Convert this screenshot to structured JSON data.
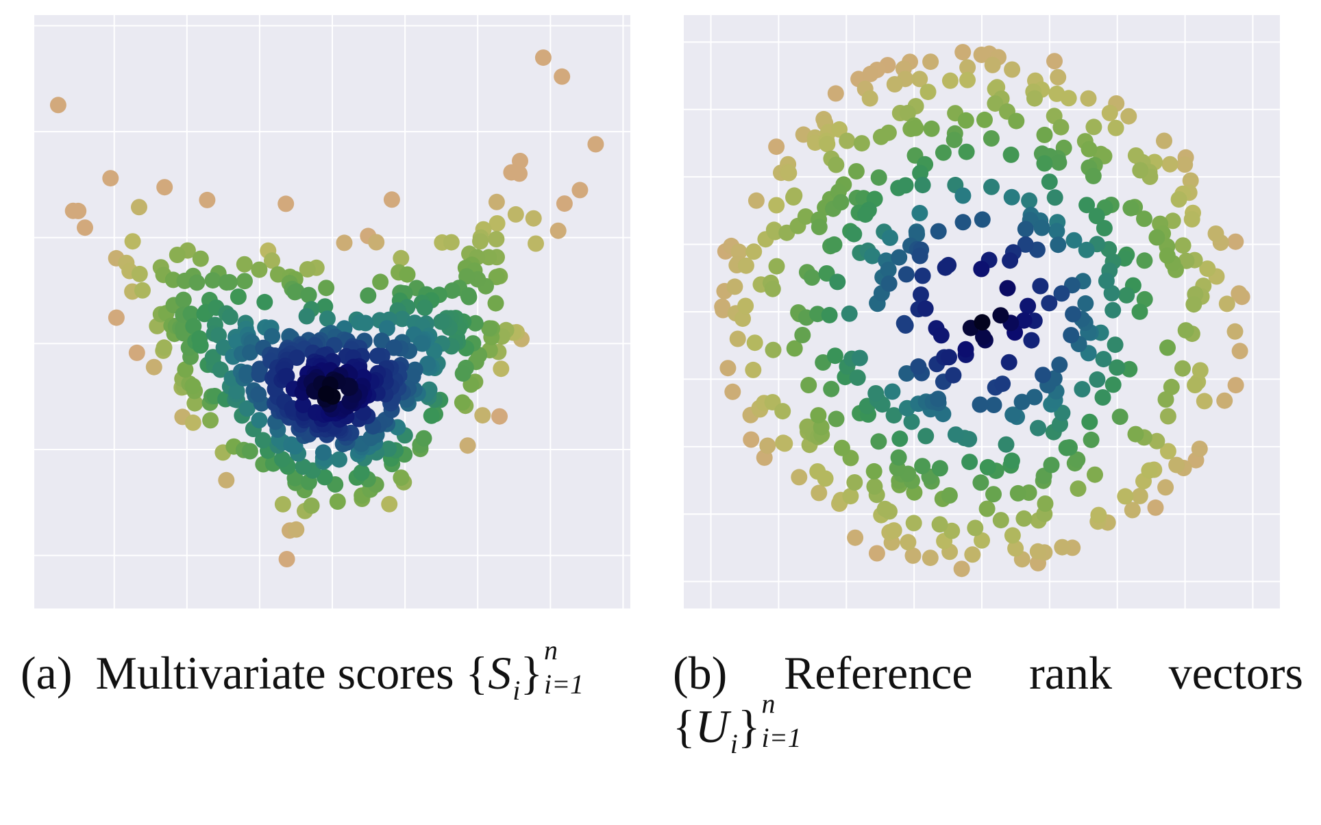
{
  "captions": {
    "a": {
      "label": "(a)",
      "text": "Multivariate scores",
      "symbol": "S",
      "subscript": "i",
      "superscript": "n",
      "index_range": "i=1"
    },
    "b": {
      "label": "(b)",
      "words": [
        "Reference",
        "rank",
        "vectors"
      ],
      "symbol": "U",
      "subscript": "i",
      "superscript": "n",
      "index_range": "i=1"
    }
  },
  "colors": {
    "background": "#eaeaf2",
    "grid": "#ffffff",
    "colormap": [
      "#000000",
      "#0b0b6e",
      "#1c3e82",
      "#277a84",
      "#3a9456",
      "#77a94b",
      "#b9b961",
      "#d2a97c"
    ]
  },
  "chart_data": [
    {
      "type": "scatter",
      "title": "",
      "xlabel": "",
      "ylabel": "",
      "grid": true,
      "legend": "none",
      "xlim": [
        -4.1,
        4.1
      ],
      "ylim": [
        -2.5,
        3.1
      ],
      "color_scale": "center-outward depth",
      "x_ticks": [
        -3,
        -2,
        -1,
        0,
        1,
        2,
        3,
        4
      ],
      "y_ticks": [
        -2,
        -1,
        0,
        1,
        2,
        3
      ],
      "shape": "u-shaped",
      "point_count": 520,
      "seed": 7
    },
    {
      "type": "scatter",
      "title": "",
      "xlabel": "",
      "ylabel": "",
      "grid": true,
      "legend": "none",
      "xlim": [
        -1.1,
        1.1
      ],
      "ylim": [
        -1.1,
        1.1
      ],
      "color_scale": "center-outward rank",
      "x_ticks": [
        -1,
        -0.75,
        -0.5,
        -0.25,
        0,
        0.25,
        0.5,
        0.75,
        1
      ],
      "y_ticks": [
        -1,
        -0.75,
        -0.5,
        -0.25,
        0,
        0.25,
        0.5,
        0.75,
        1
      ],
      "shape": "disk",
      "point_count": 520,
      "seed": 19
    }
  ]
}
